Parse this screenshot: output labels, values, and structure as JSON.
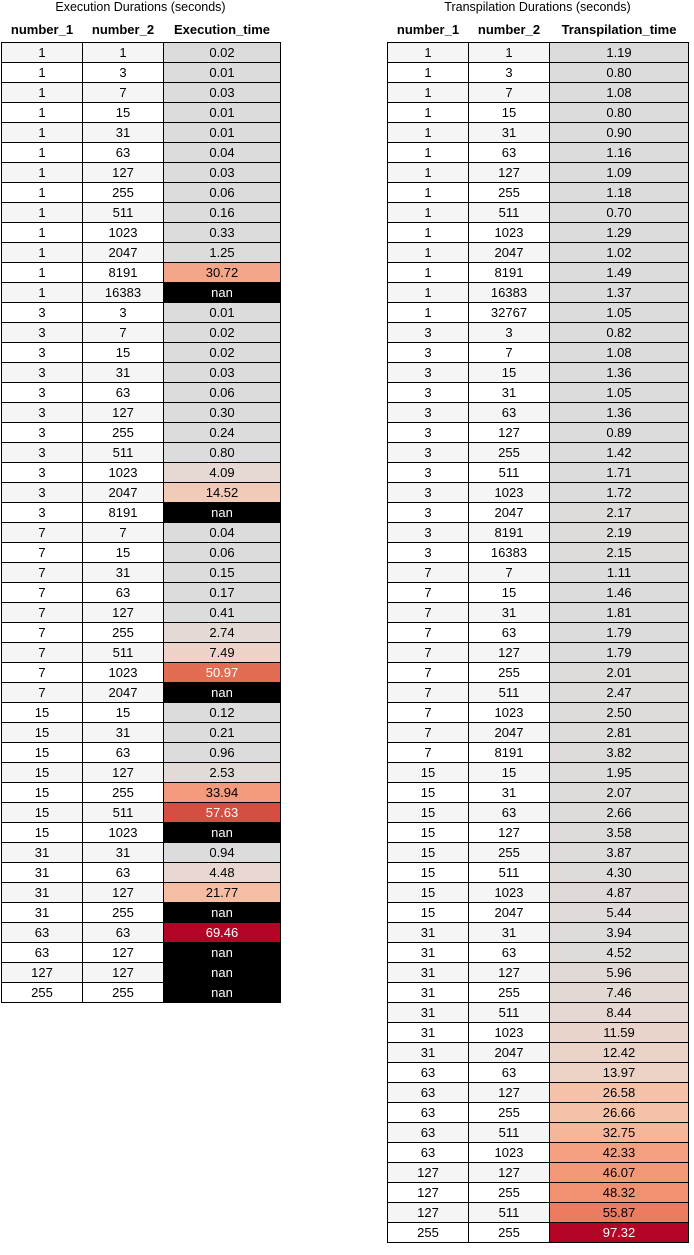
{
  "execution": {
    "title": "Execution Durations (seconds)",
    "columns": [
      "number_1",
      "number_2",
      "Execution_time"
    ],
    "rows": [
      [
        "1",
        "1",
        "0.02",
        "#dcdcdc"
      ],
      [
        "1",
        "3",
        "0.01",
        "#dcdcdc"
      ],
      [
        "1",
        "7",
        "0.03",
        "#dcdcdc"
      ],
      [
        "1",
        "15",
        "0.01",
        "#dcdcdc"
      ],
      [
        "1",
        "31",
        "0.01",
        "#dcdcdc"
      ],
      [
        "1",
        "63",
        "0.04",
        "#dcdcdc"
      ],
      [
        "1",
        "127",
        "0.03",
        "#dcdcdc"
      ],
      [
        "1",
        "255",
        "0.06",
        "#dcdcdc"
      ],
      [
        "1",
        "511",
        "0.16",
        "#dcdcdc"
      ],
      [
        "1",
        "1023",
        "0.33",
        "#dcdcdc"
      ],
      [
        "1",
        "2047",
        "1.25",
        "#dddcdb"
      ],
      [
        "1",
        "8191",
        "30.72",
        "#f4a688"
      ],
      [
        "1",
        "16383",
        "nan",
        "#000000"
      ],
      [
        "3",
        "3",
        "0.01",
        "#dcdcdc"
      ],
      [
        "3",
        "7",
        "0.02",
        "#dcdcdc"
      ],
      [
        "3",
        "15",
        "0.02",
        "#dcdcdc"
      ],
      [
        "3",
        "31",
        "0.03",
        "#dcdcdc"
      ],
      [
        "3",
        "63",
        "0.06",
        "#dcdcdc"
      ],
      [
        "3",
        "127",
        "0.30",
        "#dcdcdc"
      ],
      [
        "3",
        "255",
        "0.24",
        "#dcdcdc"
      ],
      [
        "3",
        "511",
        "0.80",
        "#dcdcdc"
      ],
      [
        "3",
        "1023",
        "4.09",
        "#e6d9d4"
      ],
      [
        "3",
        "2047",
        "14.52",
        "#f2cab8"
      ],
      [
        "3",
        "8191",
        "nan",
        "#000000"
      ],
      [
        "7",
        "7",
        "0.04",
        "#dcdcdc"
      ],
      [
        "7",
        "15",
        "0.06",
        "#dcdcdc"
      ],
      [
        "7",
        "31",
        "0.15",
        "#dcdcdc"
      ],
      [
        "7",
        "63",
        "0.17",
        "#dcdcdc"
      ],
      [
        "7",
        "127",
        "0.41",
        "#dcdcdc"
      ],
      [
        "7",
        "255",
        "2.74",
        "#e3dad6"
      ],
      [
        "7",
        "511",
        "7.49",
        "#eed4c8"
      ],
      [
        "7",
        "1023",
        "50.97",
        "#e26d52"
      ],
      [
        "7",
        "2047",
        "nan",
        "#000000"
      ],
      [
        "15",
        "15",
        "0.12",
        "#dcdcdc"
      ],
      [
        "15",
        "31",
        "0.21",
        "#dcdcdc"
      ],
      [
        "15",
        "63",
        "0.96",
        "#dcdcdc"
      ],
      [
        "15",
        "127",
        "2.53",
        "#e2dad7"
      ],
      [
        "15",
        "255",
        "33.94",
        "#f39b7c"
      ],
      [
        "15",
        "511",
        "57.63",
        "#d44e41"
      ],
      [
        "15",
        "1023",
        "nan",
        "#000000"
      ],
      [
        "31",
        "31",
        "0.94",
        "#dcdcdc"
      ],
      [
        "31",
        "63",
        "4.48",
        "#e8d8d1"
      ],
      [
        "31",
        "127",
        "21.77",
        "#f5bea4"
      ],
      [
        "31",
        "255",
        "nan",
        "#000000"
      ],
      [
        "63",
        "63",
        "69.46",
        "#b40426"
      ],
      [
        "63",
        "127",
        "nan",
        "#000000"
      ],
      [
        "127",
        "127",
        "nan",
        "#000000"
      ],
      [
        "255",
        "255",
        "nan",
        "#000000"
      ]
    ]
  },
  "transpilation": {
    "title": "Transpilation Durations (seconds)",
    "columns": [
      "number_1",
      "number_2",
      "Transpilation_time"
    ],
    "rows": [
      [
        "1",
        "1",
        "1.19",
        "#dcdcdc"
      ],
      [
        "1",
        "3",
        "0.80",
        "#dcdcdc"
      ],
      [
        "1",
        "7",
        "1.08",
        "#dcdcdc"
      ],
      [
        "1",
        "15",
        "0.80",
        "#dcdcdc"
      ],
      [
        "1",
        "31",
        "0.90",
        "#dcdcdc"
      ],
      [
        "1",
        "63",
        "1.16",
        "#dcdcdc"
      ],
      [
        "1",
        "127",
        "1.09",
        "#dcdcdc"
      ],
      [
        "1",
        "255",
        "1.18",
        "#dcdcdc"
      ],
      [
        "1",
        "511",
        "0.70",
        "#dcdcdc"
      ],
      [
        "1",
        "1023",
        "1.29",
        "#dcdcdc"
      ],
      [
        "1",
        "2047",
        "1.02",
        "#dcdcdc"
      ],
      [
        "1",
        "8191",
        "1.49",
        "#dcdcdc"
      ],
      [
        "1",
        "16383",
        "1.37",
        "#dcdcdc"
      ],
      [
        "1",
        "32767",
        "1.05",
        "#dcdcdc"
      ],
      [
        "3",
        "3",
        "0.82",
        "#dcdcdc"
      ],
      [
        "3",
        "7",
        "1.08",
        "#dcdcdc"
      ],
      [
        "3",
        "15",
        "1.36",
        "#dcdcdc"
      ],
      [
        "3",
        "31",
        "1.05",
        "#dcdcdc"
      ],
      [
        "3",
        "63",
        "1.36",
        "#dcdcdc"
      ],
      [
        "3",
        "127",
        "0.89",
        "#dcdcdc"
      ],
      [
        "3",
        "255",
        "1.42",
        "#dcdcdc"
      ],
      [
        "3",
        "511",
        "1.71",
        "#dcdcdc"
      ],
      [
        "3",
        "1023",
        "1.72",
        "#dcdcdc"
      ],
      [
        "3",
        "2047",
        "2.17",
        "#dddcdb"
      ],
      [
        "3",
        "8191",
        "2.19",
        "#dddcdb"
      ],
      [
        "3",
        "16383",
        "2.15",
        "#dddcdb"
      ],
      [
        "7",
        "7",
        "1.11",
        "#dcdcdc"
      ],
      [
        "7",
        "15",
        "1.46",
        "#dcdcdc"
      ],
      [
        "7",
        "31",
        "1.81",
        "#dcdcdc"
      ],
      [
        "7",
        "63",
        "1.79",
        "#dcdcdc"
      ],
      [
        "7",
        "127",
        "1.79",
        "#dcdcdc"
      ],
      [
        "7",
        "255",
        "2.01",
        "#dddcdb"
      ],
      [
        "7",
        "511",
        "2.47",
        "#dddcdb"
      ],
      [
        "7",
        "1023",
        "2.50",
        "#dddcdb"
      ],
      [
        "7",
        "2047",
        "2.81",
        "#dddcdb"
      ],
      [
        "7",
        "8191",
        "3.82",
        "#dedbda"
      ],
      [
        "15",
        "15",
        "1.95",
        "#dddcdb"
      ],
      [
        "15",
        "31",
        "2.07",
        "#dddcdb"
      ],
      [
        "15",
        "63",
        "2.66",
        "#dddcdb"
      ],
      [
        "15",
        "127",
        "3.58",
        "#dedbda"
      ],
      [
        "15",
        "255",
        "3.87",
        "#dedbda"
      ],
      [
        "15",
        "511",
        "4.30",
        "#dfdbd9"
      ],
      [
        "15",
        "1023",
        "4.87",
        "#dfdad8"
      ],
      [
        "15",
        "2047",
        "5.44",
        "#e0dad8"
      ],
      [
        "31",
        "31",
        "3.94",
        "#dedbda"
      ],
      [
        "31",
        "63",
        "4.52",
        "#dfdbd9"
      ],
      [
        "31",
        "127",
        "5.96",
        "#e1d9d6"
      ],
      [
        "31",
        "255",
        "7.46",
        "#e3d9d4"
      ],
      [
        "31",
        "511",
        "8.44",
        "#e5d8d2"
      ],
      [
        "31",
        "1023",
        "11.59",
        "#e9d5cb"
      ],
      [
        "31",
        "2047",
        "12.42",
        "#ead4c9"
      ],
      [
        "63",
        "63",
        "13.97",
        "#ecd3c5"
      ],
      [
        "63",
        "127",
        "26.58",
        "#f5c2aa"
      ],
      [
        "63",
        "255",
        "26.66",
        "#f5c2aa"
      ],
      [
        "63",
        "511",
        "32.75",
        "#f6b699"
      ],
      [
        "63",
        "1023",
        "42.33",
        "#f5a081"
      ],
      [
        "127",
        "127",
        "46.07",
        "#f4987a"
      ],
      [
        "127",
        "255",
        "48.32",
        "#f29072"
      ],
      [
        "127",
        "511",
        "55.87",
        "#ec7b5f"
      ],
      [
        "255",
        "255",
        "97.32",
        "#b40426"
      ]
    ]
  }
}
